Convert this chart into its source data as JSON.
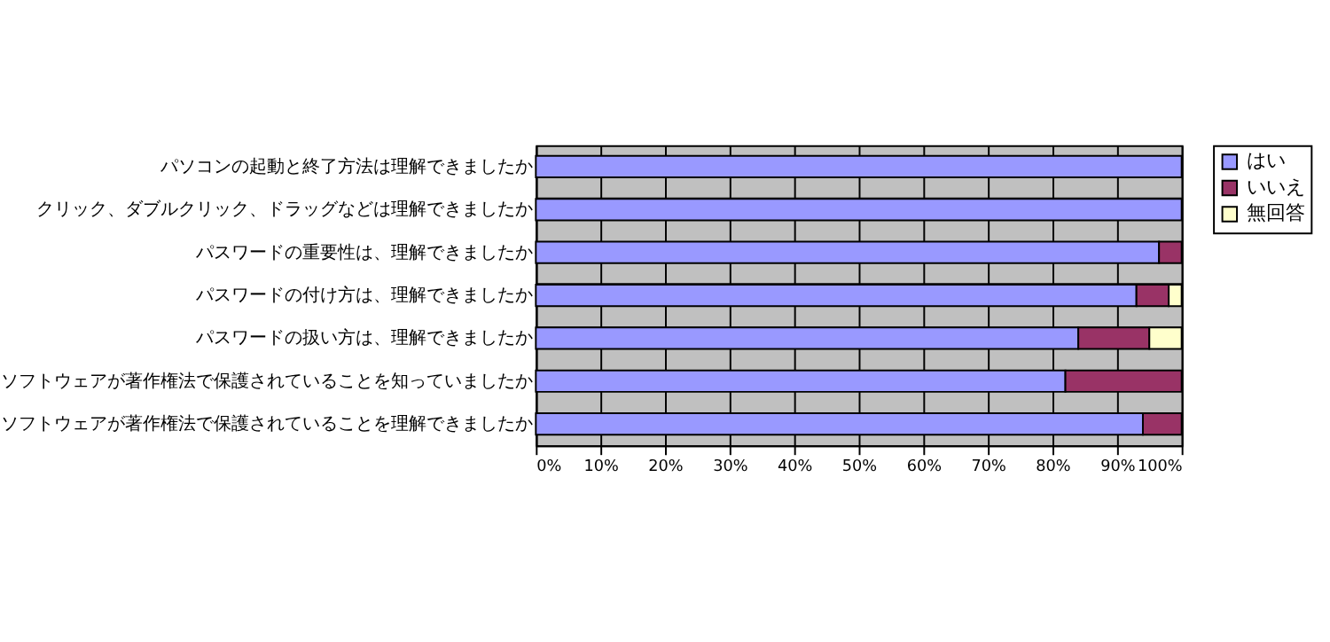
{
  "chart_data": {
    "type": "bar",
    "orientation": "horizontal",
    "stacked": true,
    "categories": [
      "パソコンの起動と終了方法は理解できましたか",
      "クリック、ダブルクリック、ドラッグなどは理解できましたか",
      "パスワードの重要性は、理解できましたか",
      "パスワードの付け方は、理解できましたか",
      "パスワードの扱い方は、理解できましたか",
      "ソフトウェアが著作権法で保護されていることを知っていましたか",
      "ソフトウェアが著作権法で保護されていることを理解できましたか"
    ],
    "series": [
      {
        "name": "はい",
        "color": "#9999ff",
        "values": [
          100,
          100,
          96.5,
          93,
          84,
          82,
          94
        ]
      },
      {
        "name": "いいえ",
        "color": "#993366",
        "values": [
          0,
          0,
          3.5,
          5,
          11,
          18,
          6
        ]
      },
      {
        "name": "無回答",
        "color": "#ffffcc",
        "values": [
          0,
          0,
          0,
          2,
          5,
          0,
          0
        ]
      }
    ],
    "xlim": [
      0,
      100
    ],
    "xticks": [
      {
        "value": 0,
        "label": "0%"
      },
      {
        "value": 10,
        "label": "10%"
      },
      {
        "value": 20,
        "label": "20%"
      },
      {
        "value": 30,
        "label": "30%"
      },
      {
        "value": 40,
        "label": "40%"
      },
      {
        "value": 50,
        "label": "50%"
      },
      {
        "value": 60,
        "label": "60%"
      },
      {
        "value": 70,
        "label": "70%"
      },
      {
        "value": 80,
        "label": "80%"
      },
      {
        "value": 90,
        "label": "90%"
      },
      {
        "value": 100,
        "label": "100%"
      }
    ],
    "grid": true,
    "legend": "right"
  }
}
